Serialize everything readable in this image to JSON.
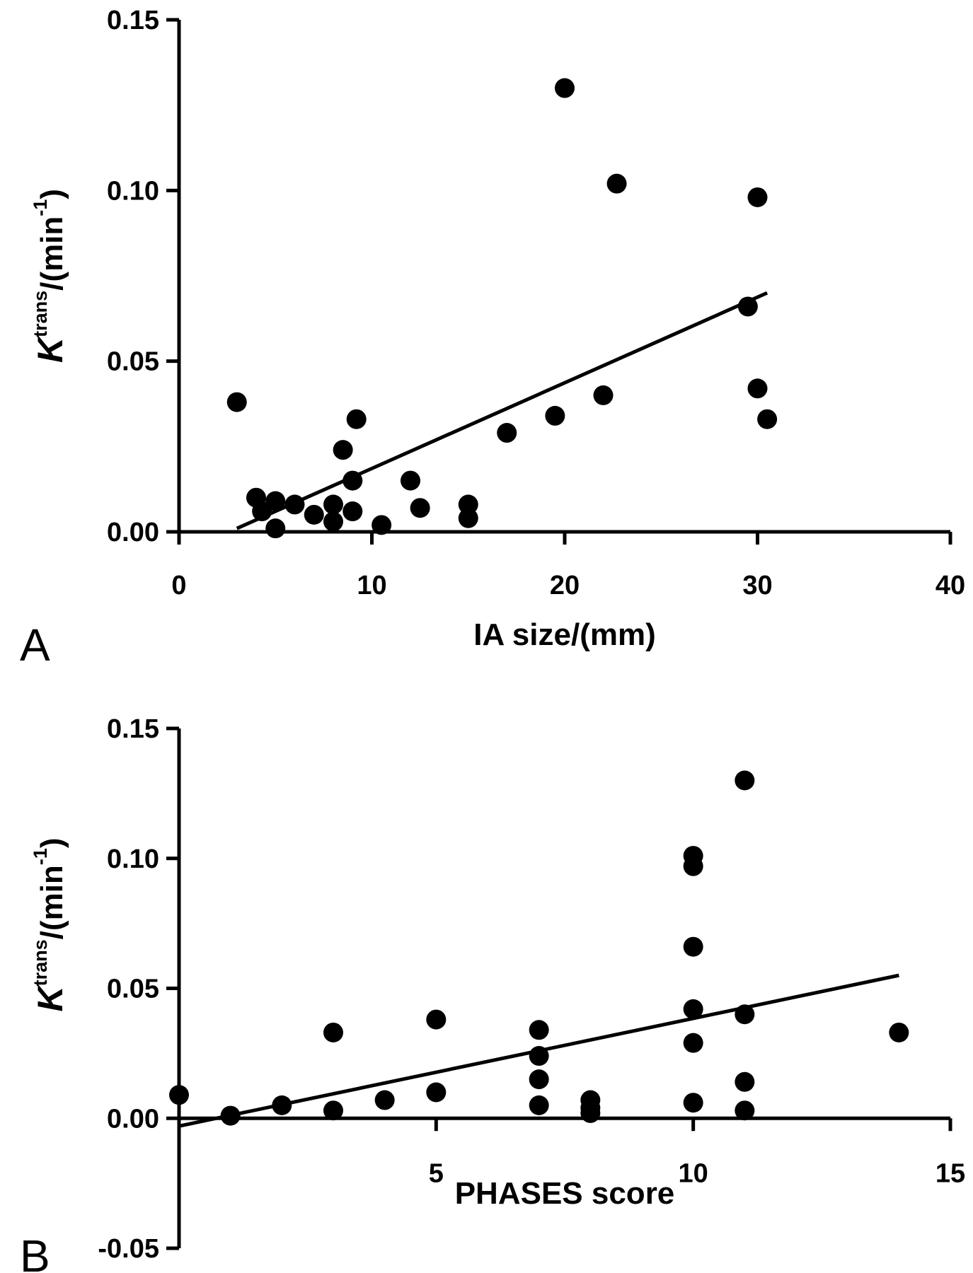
{
  "chart_data": [
    {
      "panel": "A",
      "type": "scatter",
      "xlabel": "IA size/(mm)",
      "ylabel": {
        "symbol": "K",
        "superscript": "trans",
        "unit": "/(min",
        "unit_superscript": "-1",
        "close": ")"
      },
      "xlim": [
        0,
        40
      ],
      "ylim": [
        0,
        0.15
      ],
      "xticks": [
        0,
        10,
        20,
        30,
        40
      ],
      "yticks": [
        0.0,
        0.05,
        0.1,
        0.15
      ],
      "xtick_labels": [
        "0",
        "10",
        "20",
        "30",
        "40"
      ],
      "ytick_labels": [
        "0.00",
        "0.05",
        "0.10",
        "0.15"
      ],
      "grid": false,
      "legend": "none",
      "points": [
        {
          "x": 3.0,
          "y": 0.038
        },
        {
          "x": 4.0,
          "y": 0.01
        },
        {
          "x": 4.3,
          "y": 0.006
        },
        {
          "x": 5.0,
          "y": 0.009
        },
        {
          "x": 5.0,
          "y": 0.001
        },
        {
          "x": 6.0,
          "y": 0.008
        },
        {
          "x": 7.0,
          "y": 0.005
        },
        {
          "x": 8.0,
          "y": 0.008
        },
        {
          "x": 8.0,
          "y": 0.003
        },
        {
          "x": 8.5,
          "y": 0.024
        },
        {
          "x": 9.0,
          "y": 0.015
        },
        {
          "x": 9.0,
          "y": 0.006
        },
        {
          "x": 9.2,
          "y": 0.033
        },
        {
          "x": 10.5,
          "y": 0.002
        },
        {
          "x": 12.0,
          "y": 0.015
        },
        {
          "x": 12.5,
          "y": 0.007
        },
        {
          "x": 15.0,
          "y": 0.008
        },
        {
          "x": 15.0,
          "y": 0.004
        },
        {
          "x": 17.0,
          "y": 0.029
        },
        {
          "x": 19.5,
          "y": 0.034
        },
        {
          "x": 20.0,
          "y": 0.13
        },
        {
          "x": 22.0,
          "y": 0.04
        },
        {
          "x": 22.7,
          "y": 0.102
        },
        {
          "x": 29.5,
          "y": 0.066
        },
        {
          "x": 30.0,
          "y": 0.098
        },
        {
          "x": 30.0,
          "y": 0.042
        },
        {
          "x": 30.5,
          "y": 0.033
        }
      ],
      "fit_line": {
        "x": [
          3.0,
          30.5
        ],
        "y": [
          0.001,
          0.07
        ]
      }
    },
    {
      "panel": "B",
      "type": "scatter",
      "xlabel": "PHASES score",
      "ylabel": {
        "symbol": "K",
        "superscript": "trans",
        "unit": "/(min",
        "unit_superscript": "-1",
        "close": ")"
      },
      "xlim": [
        0,
        15
      ],
      "ylim": [
        -0.05,
        0.15
      ],
      "xticks": [
        5,
        10,
        15
      ],
      "yticks": [
        -0.05,
        0.0,
        0.05,
        0.1,
        0.15
      ],
      "xtick_labels": [
        "5",
        "10",
        "15"
      ],
      "ytick_labels": [
        "-0.05",
        "0.00",
        "0.05",
        "0.10",
        "0.15"
      ],
      "x_axis_at_y": 0,
      "grid": false,
      "legend": "none",
      "points": [
        {
          "x": 0,
          "y": 0.009
        },
        {
          "x": 1,
          "y": 0.001
        },
        {
          "x": 2,
          "y": 0.005
        },
        {
          "x": 3,
          "y": 0.033
        },
        {
          "x": 3,
          "y": 0.003
        },
        {
          "x": 4,
          "y": 0.007
        },
        {
          "x": 5,
          "y": 0.038
        },
        {
          "x": 5,
          "y": 0.01
        },
        {
          "x": 7,
          "y": 0.034
        },
        {
          "x": 7,
          "y": 0.024
        },
        {
          "x": 7,
          "y": 0.015
        },
        {
          "x": 7,
          "y": 0.005
        },
        {
          "x": 8,
          "y": 0.007
        },
        {
          "x": 8,
          "y": 0.004
        },
        {
          "x": 8,
          "y": 0.002
        },
        {
          "x": 10,
          "y": 0.101
        },
        {
          "x": 10,
          "y": 0.097
        },
        {
          "x": 10,
          "y": 0.066
        },
        {
          "x": 10,
          "y": 0.042
        },
        {
          "x": 10,
          "y": 0.029
        },
        {
          "x": 10,
          "y": 0.006
        },
        {
          "x": 11,
          "y": 0.13
        },
        {
          "x": 11,
          "y": 0.04
        },
        {
          "x": 11,
          "y": 0.014
        },
        {
          "x": 11,
          "y": 0.003
        },
        {
          "x": 14,
          "y": 0.033
        }
      ],
      "fit_line": {
        "x": [
          0,
          14
        ],
        "y": [
          -0.003,
          0.055
        ]
      }
    }
  ]
}
